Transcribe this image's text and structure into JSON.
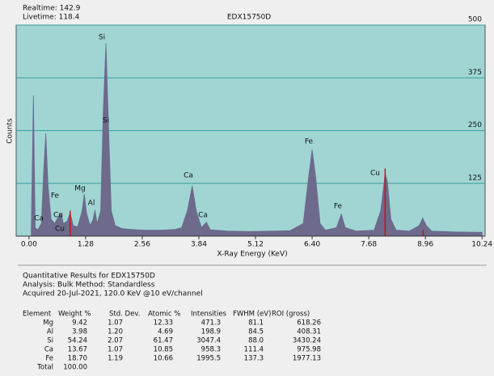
{
  "chart_data": {
    "type": "area",
    "title": "EDX15750D",
    "realtime": "Realtime: 142.9",
    "livetime": "Livetime: 118.4",
    "x_label": "X-Ray Energy (KeV)",
    "y_label": "Counts",
    "color": "#6d6a8c",
    "background": "#a0d5d4",
    "grid": true,
    "y_axis_side": "right",
    "xlim": [
      -0.29,
      10.31
    ],
    "ylim": [
      0,
      500
    ],
    "xticks": [
      {
        "value": 0,
        "label": "0.00"
      },
      {
        "value": 1.28,
        "label": "1.28"
      },
      {
        "value": 2.56,
        "label": "2.56"
      },
      {
        "value": 3.84,
        "label": "3.84"
      },
      {
        "value": 5.12,
        "label": "5.12"
      },
      {
        "value": 6.4,
        "label": "6.40"
      },
      {
        "value": 7.68,
        "label": "7.68"
      },
      {
        "value": 8.96,
        "label": "8.96"
      },
      {
        "value": 10.24,
        "label": "10.24"
      }
    ],
    "yticks": [
      125,
      250,
      375,
      500
    ],
    "x": [
      0.05,
      0.1,
      0.14,
      0.2,
      0.28,
      0.33,
      0.38,
      0.43,
      0.5,
      0.58,
      0.66,
      0.72,
      0.78,
      0.86,
      0.93,
      1.0,
      1.1,
      1.2,
      1.25,
      1.3,
      1.38,
      1.45,
      1.49,
      1.54,
      1.62,
      1.68,
      1.74,
      1.8,
      1.86,
      1.95,
      2.1,
      2.3,
      2.6,
      3.0,
      3.3,
      3.45,
      3.58,
      3.69,
      3.78,
      3.9,
      4.01,
      4.1,
      4.5,
      5.0,
      5.5,
      5.9,
      6.2,
      6.32,
      6.4,
      6.48,
      6.58,
      6.7,
      6.95,
      7.06,
      7.15,
      7.4,
      7.8,
      7.95,
      8.05,
      8.1,
      8.18,
      8.3,
      8.6,
      8.82,
      8.9,
      8.98,
      9.1,
      9.6,
      10.24
    ],
    "values": [
      10,
      333,
      20,
      15,
      30,
      150,
      243,
      120,
      40,
      30,
      45,
      55,
      30,
      35,
      55,
      25,
      22,
      60,
      100,
      55,
      25,
      40,
      62,
      30,
      60,
      300,
      457,
      250,
      60,
      25,
      18,
      16,
      14,
      14,
      16,
      20,
      60,
      119,
      60,
      20,
      33,
      15,
      12,
      11,
      12,
      13,
      30,
      140,
      205,
      140,
      30,
      14,
      20,
      52,
      20,
      12,
      14,
      60,
      148,
      130,
      40,
      14,
      12,
      25,
      43,
      25,
      12,
      10,
      9
    ],
    "markers": {
      "color": "#cc1111",
      "x": [
        0.93,
        8.05,
        8.91
      ],
      "values": [
        60,
        160,
        15
      ]
    },
    "annotations": [
      "Ca",
      "Fe",
      "Cu",
      "Cu",
      "Mg",
      "Al",
      "Si",
      "Si",
      "Ca",
      "Ca",
      "Fe",
      "Fe",
      "Cu"
    ]
  },
  "report": {
    "title": "Quantitative Results for EDX15750D",
    "analysis": "Analysis: Bulk   Method: Standardless",
    "acquired": "Acquired 20-Jul-2021, 120.0 KeV @10 eV/channel",
    "table": {
      "header": [
        "Element",
        "Weight %",
        "Std. Dev.",
        "Atomic %",
        "Intensities",
        "FWHM (eV)",
        "ROI (gross)"
      ],
      "rows": [
        [
          "Mg",
          "9.42",
          "1.07",
          "12.33",
          "471.3",
          "81.1",
          "618.26"
        ],
        [
          "Al",
          "3.98",
          "1.20",
          "4.69",
          "198.9",
          "84.5",
          "408.31"
        ],
        [
          "Si",
          "54.24",
          "2.07",
          "61.47",
          "3047.4",
          "88.0",
          "3430.24"
        ],
        [
          "Ca",
          "13.67",
          "1.07",
          "10.85",
          "958.3",
          "111.4",
          "975.98"
        ],
        [
          "Fe",
          "18.70",
          "1.19",
          "10.66",
          "1995.5",
          "137.3",
          "1977.13"
        ],
        [
          "Total",
          "100.00"
        ]
      ]
    }
  }
}
